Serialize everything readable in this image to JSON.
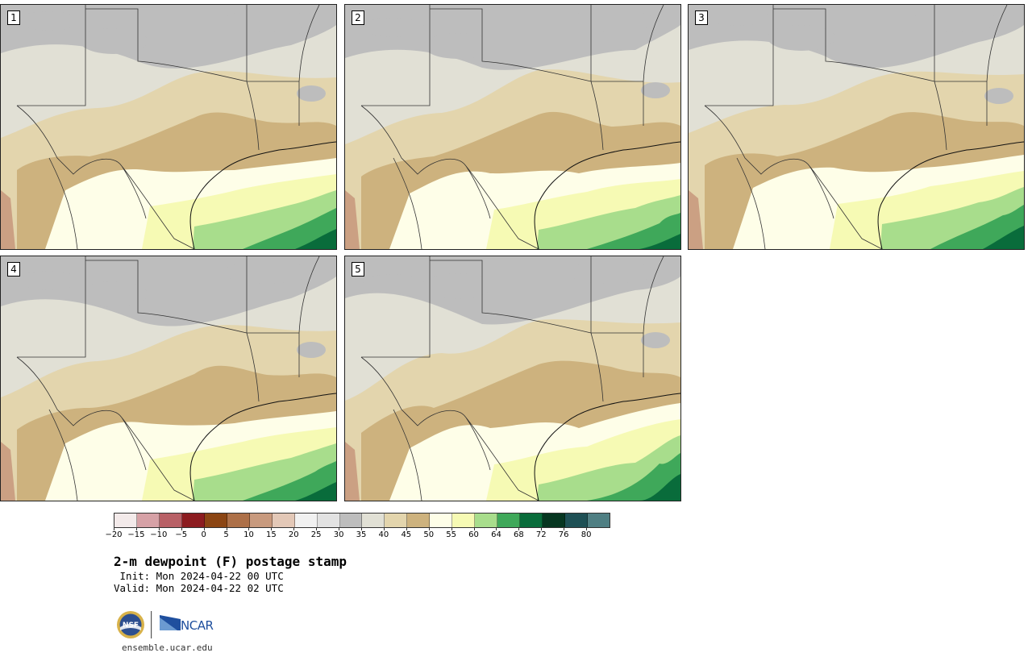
{
  "panels": [
    {
      "label": "1"
    },
    {
      "label": "2"
    },
    {
      "label": "3"
    },
    {
      "label": "4"
    },
    {
      "label": "5"
    }
  ],
  "colorbar": {
    "colors": [
      "#f3eaea",
      "#d6a1a6",
      "#b86066",
      "#8c1c20",
      "#8b4513",
      "#ad7048",
      "#c89a7e",
      "#e3c8b7",
      "#f1f1f1",
      "#e2e2e2",
      "#bdbdbd",
      "#e1e0d5",
      "#e3d5ad",
      "#cdb27e",
      "#fefee8",
      "#f6fab4",
      "#a8dd8c",
      "#3fa85a",
      "#096c3b",
      "#063620",
      "#1e5055",
      "#4f7f83"
    ],
    "tick_labels": [
      "−20",
      "−15",
      "−10",
      "−5",
      "0",
      "5",
      "10",
      "15",
      "20",
      "25",
      "30",
      "35",
      "40",
      "45",
      "50",
      "55",
      "60",
      "64",
      "68",
      "72",
      "76",
      "80"
    ]
  },
  "title": "2-m dewpoint (F) postage stamp",
  "init_text": " Init: Mon 2024-04-22 00 UTC",
  "valid_text": "Valid: Mon 2024-04-22 02 UTC",
  "logos": {
    "nsf": "NSF",
    "ncar": "NCAR"
  },
  "website": "ensemble.ucar.edu"
}
